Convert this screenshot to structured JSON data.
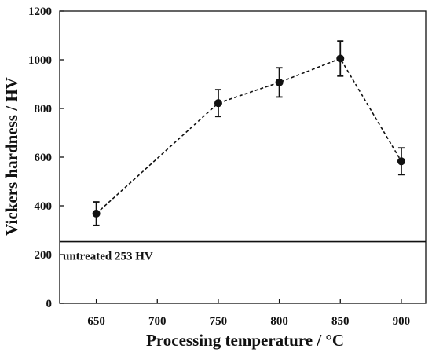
{
  "chart_data": {
    "type": "line",
    "title": "",
    "xlabel": "Processing temperature / °C",
    "ylabel": "Vickers hardness / HV",
    "xlim": [
      620,
      920
    ],
    "ylim": [
      0,
      1200
    ],
    "x_ticks": [
      "650",
      "700",
      "750",
      "800",
      "850",
      "900"
    ],
    "y_ticks": [
      "0",
      "200",
      "400",
      "600",
      "800",
      "1000",
      "1200"
    ],
    "grid": false,
    "legend": "none",
    "series": [
      {
        "x": [
          650,
          750,
          800,
          850,
          900
        ],
        "y": [
          368,
          822,
          907,
          1005,
          583
        ],
        "error": [
          48,
          55,
          60,
          72,
          55
        ],
        "line_style": "dashed",
        "marker": "circle",
        "color": "#111111"
      }
    ],
    "reference_line": {
      "y": 253,
      "label": "untreated 253 HV"
    }
  }
}
